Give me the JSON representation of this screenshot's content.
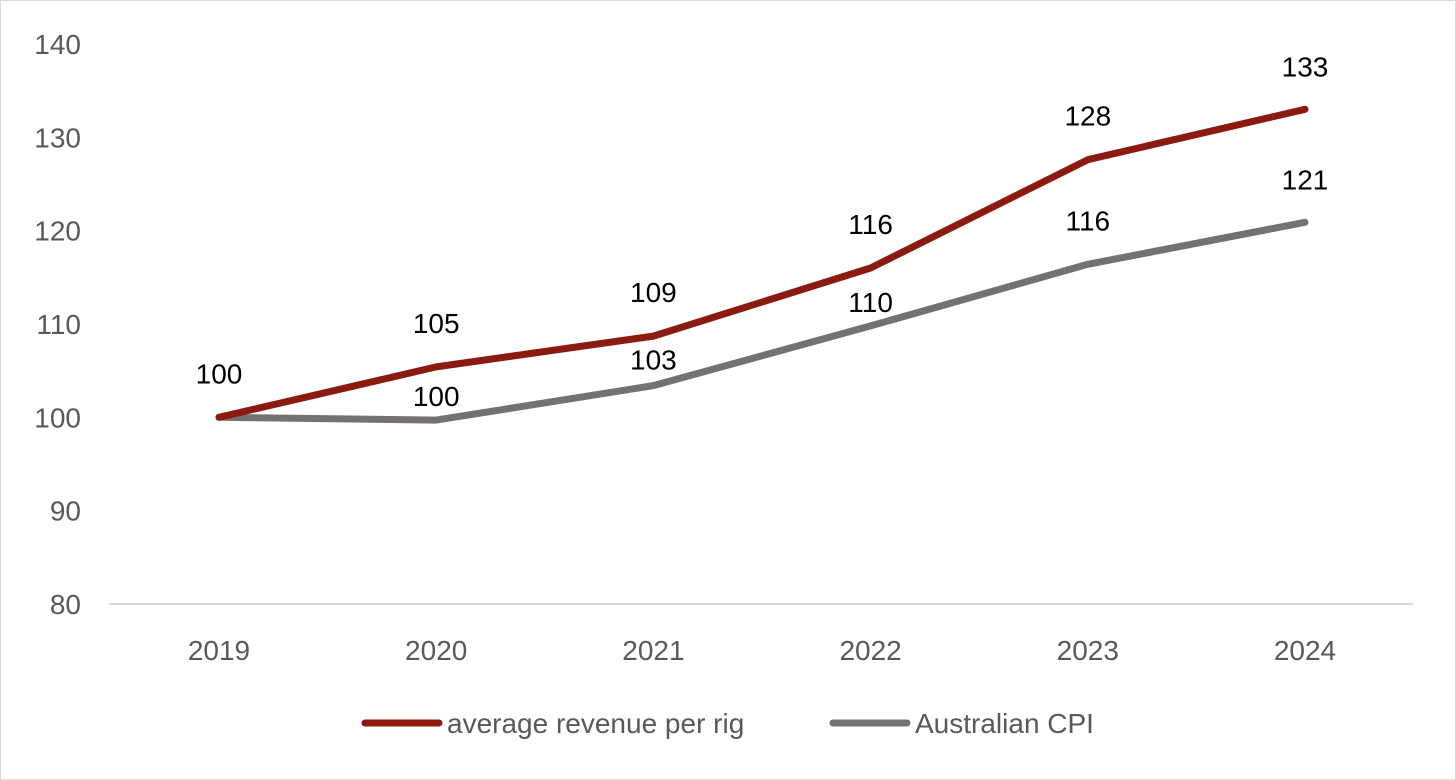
{
  "chart_data": {
    "type": "line",
    "title": "",
    "xlabel": "",
    "ylabel": "",
    "categories": [
      "2019",
      "2020",
      "2021",
      "2022",
      "2023",
      "2024"
    ],
    "ylim": [
      80,
      140
    ],
    "yticks": [
      80,
      90,
      100,
      110,
      120,
      130,
      140
    ],
    "grid": false,
    "legend_position": "bottom",
    "series": [
      {
        "name": "average revenue per rig",
        "color": "#8b1a10",
        "values": [
          100,
          105.4,
          108.7,
          116.0,
          127.6,
          133.0
        ],
        "labels": [
          "100",
          "105",
          "109",
          "116",
          "128",
          "133"
        ]
      },
      {
        "name": "Australian CPI",
        "color": "#767171",
        "values": [
          100,
          99.7,
          103.4,
          109.8,
          116.4,
          120.9
        ],
        "labels": [
          "100",
          "100",
          "103",
          "110",
          "116",
          "121"
        ]
      }
    ]
  }
}
